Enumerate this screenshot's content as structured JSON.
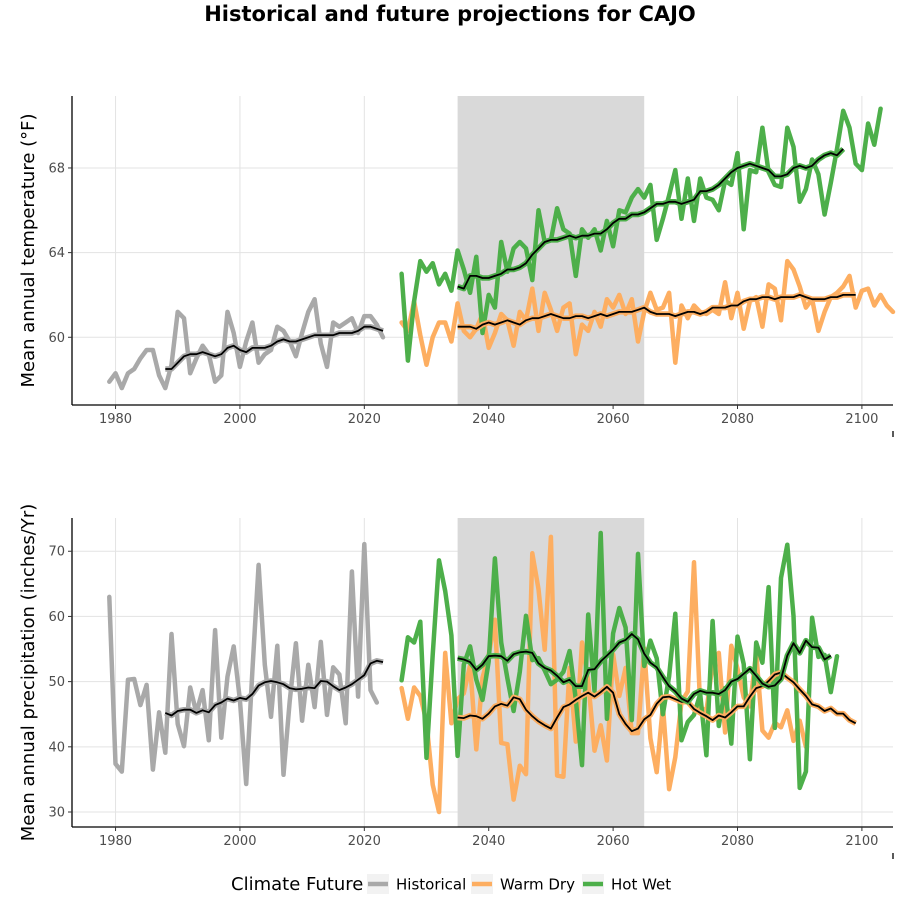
{
  "title": "Historical and future projections for CAJO",
  "colors": {
    "Historical": "#a9a9a9",
    "Warm Dry": "#fdae61",
    "Hot Wet": "#4daf4a",
    "smooth": "#000000",
    "shade": "#d9d9d9"
  },
  "legend": {
    "title": "Climate Future",
    "items": [
      "Historical",
      "Warm Dry",
      "Hot Wet"
    ],
    "position": "bottom"
  },
  "shaded_period": [
    2035,
    2065
  ],
  "chart_data": [
    {
      "type": "line",
      "ylabel": "Mean annual temperature (°F)",
      "xlabel": "",
      "xlim": [
        1973,
        2105
      ],
      "ylim": [
        56.8,
        71.4
      ],
      "xticks": [
        1980,
        2000,
        2020,
        2040,
        2060,
        2080,
        2100
      ],
      "yticks": [
        60,
        64,
        68
      ],
      "grid": true,
      "series": [
        {
          "name": "Historical",
          "x_start": 1979,
          "values": [
            57.9,
            58.3,
            57.6,
            58.3,
            58.5,
            59.0,
            59.4,
            59.4,
            58.2,
            57.6,
            58.7,
            61.2,
            60.9,
            58.3,
            59.0,
            59.6,
            59.2,
            57.9,
            58.2,
            61.2,
            60.2,
            58.6,
            59.8,
            60.7,
            58.8,
            59.2,
            59.4,
            60.5,
            60.3,
            59.8,
            59.1,
            60.2,
            61.2,
            61.8,
            59.7,
            58.6,
            60.7,
            60.5,
            60.7,
            60.9,
            60.2,
            61.0,
            61.0,
            60.6,
            60.0
          ]
        },
        {
          "name": "Historical (smoothed)",
          "x_start": 1988,
          "values": [
            58.5,
            58.5,
            58.8,
            59.1,
            59.2,
            59.2,
            59.3,
            59.2,
            59.1,
            59.2,
            59.5,
            59.6,
            59.4,
            59.3,
            59.5,
            59.5,
            59.5,
            59.6,
            59.8,
            59.9,
            59.8,
            59.8,
            59.9,
            60.0,
            60.1,
            60.1,
            60.1,
            60.1,
            60.2,
            60.2,
            60.2,
            60.3,
            60.5,
            60.5,
            60.4,
            60.3
          ]
        },
        {
          "name": "Warm Dry",
          "x_start": 2026,
          "values": [
            60.7,
            60.3,
            61.7,
            60.1,
            58.7,
            60.0,
            60.7,
            60.7,
            59.8,
            61.6,
            60.3,
            60.0,
            60.4,
            61.1,
            59.5,
            60.2,
            61.1,
            60.8,
            59.6,
            61.2,
            60.8,
            62.3,
            60.3,
            62.1,
            61.3,
            60.3,
            61.4,
            61.6,
            59.2,
            60.6,
            60.3,
            61.2,
            60.5,
            61.8,
            61.4,
            62.0,
            61.1,
            61.8,
            59.8,
            61.2,
            62.1,
            61.3,
            61.4,
            62.1,
            58.8,
            61.5,
            60.9,
            61.5,
            61.2,
            61.1,
            61.3,
            61.1,
            62.6,
            60.9,
            62.1,
            60.4,
            61.7,
            61.9,
            60.5,
            62.5,
            62.3,
            60.8,
            63.6,
            63.2,
            62.4,
            61.4,
            61.8,
            60.3,
            61.2,
            61.9,
            62.1,
            62.4,
            62.9,
            61.4,
            62.2,
            62.3,
            61.5,
            62.0,
            61.5,
            61.2
          ]
        },
        {
          "name": "Warm Dry (smoothed)",
          "x_start": 2035,
          "values": [
            60.5,
            60.5,
            60.5,
            60.4,
            60.6,
            60.7,
            60.6,
            60.7,
            60.8,
            60.7,
            60.6,
            60.8,
            60.9,
            60.9,
            61.0,
            61.1,
            61.0,
            60.9,
            60.9,
            61.0,
            61.0,
            60.9,
            61.0,
            61.1,
            61.0,
            61.1,
            61.2,
            61.2,
            61.2,
            61.3,
            61.4,
            61.2,
            61.1,
            61.1,
            61.1,
            61.0,
            61.1,
            61.2,
            61.2,
            61.1,
            61.2,
            61.4,
            61.4,
            61.4,
            61.5,
            61.5,
            61.7,
            61.8,
            61.8,
            61.9,
            61.9,
            61.8,
            61.9,
            61.9,
            61.9,
            62.0,
            61.9,
            61.8,
            61.8,
            61.8,
            61.9,
            61.9,
            62.0,
            62.0,
            62.0
          ]
        },
        {
          "name": "Hot Wet",
          "x_start": 2026,
          "values": [
            63.0,
            58.9,
            61.7,
            63.6,
            63.1,
            63.5,
            62.5,
            63.0,
            62.2,
            64.1,
            63.2,
            62.1,
            63.8,
            60.2,
            62.0,
            61.4,
            64.5,
            63.1,
            64.2,
            64.5,
            64.2,
            62.7,
            66.0,
            64.5,
            64.6,
            66.1,
            65.1,
            64.9,
            62.9,
            65.1,
            64.7,
            65.1,
            64.1,
            65.5,
            64.3,
            66.0,
            65.9,
            66.6,
            67.0,
            66.6,
            67.2,
            64.6,
            65.6,
            66.7,
            67.9,
            65.6,
            67.5,
            65.5,
            67.5,
            66.6,
            66.5,
            66.0,
            67.4,
            67.2,
            68.7,
            65.1,
            67.9,
            67.8,
            69.9,
            67.8,
            67.2,
            67.1,
            69.9,
            69.0,
            66.4,
            67.0,
            68.4,
            67.7,
            65.8,
            67.3,
            68.9,
            70.7,
            69.9,
            68.2,
            67.9,
            70.1,
            69.1,
            70.8
          ]
        },
        {
          "name": "Hot Wet (smoothed)",
          "x_start": 2035,
          "values": [
            62.4,
            62.3,
            62.9,
            62.9,
            62.8,
            62.8,
            62.9,
            63.0,
            63.2,
            63.2,
            63.3,
            63.5,
            63.9,
            64.2,
            64.5,
            64.6,
            64.6,
            64.7,
            64.8,
            64.7,
            64.8,
            64.8,
            64.9,
            64.9,
            65.1,
            65.4,
            65.6,
            65.6,
            65.8,
            65.8,
            65.9,
            66.1,
            66.3,
            66.3,
            66.4,
            66.4,
            66.3,
            66.4,
            66.5,
            66.9,
            66.9,
            67.0,
            67.2,
            67.5,
            67.8,
            68.0,
            68.1,
            68.2,
            68.1,
            68.0,
            67.9,
            67.6,
            67.6,
            67.7,
            68.0,
            68.1,
            68.0,
            68.1,
            68.4,
            68.6,
            68.7,
            68.6,
            68.9
          ]
        }
      ]
    },
    {
      "type": "line",
      "ylabel": "Mean annual precipitation (inches/Yr)",
      "xlabel": "",
      "xlim": [
        1973,
        2105
      ],
      "ylim": [
        27.7,
        75.1
      ],
      "xticks": [
        1980,
        2000,
        2020,
        2040,
        2060,
        2080,
        2100
      ],
      "yticks": [
        30,
        40,
        50,
        60,
        70
      ],
      "grid": true,
      "series": [
        {
          "name": "Historical",
          "x_start": 1979,
          "values": [
            63.0,
            37.4,
            36.2,
            50.3,
            50.4,
            46.4,
            49.5,
            36.5,
            45.3,
            39.1,
            57.3,
            43.5,
            40.1,
            49.1,
            45.2,
            48.7,
            41.0,
            57.9,
            41.4,
            50.8,
            55.4,
            47.2,
            34.3,
            51.7,
            67.9,
            52.6,
            44.6,
            55.5,
            35.7,
            47.0,
            55.9,
            44.0,
            52.6,
            46.1,
            56.1,
            44.9,
            52.2,
            51.1,
            43.6,
            66.9,
            47.7,
            71.1,
            48.7,
            46.8
          ]
        },
        {
          "name": "Historical (smoothed)",
          "x_start": 1988,
          "values": [
            45.2,
            44.8,
            45.5,
            45.7,
            45.7,
            45.2,
            45.6,
            45.3,
            46.4,
            46.8,
            47.4,
            47.1,
            47.5,
            47.3,
            48.1,
            49.4,
            49.9,
            50.1,
            49.9,
            49.6,
            49.0,
            48.8,
            48.9,
            49.1,
            49.0,
            50.1,
            50.0,
            49.3,
            48.7,
            49.1,
            49.6,
            50.3,
            51.0,
            52.8,
            53.2,
            53.0
          ]
        },
        {
          "name": "Warm Dry",
          "x_start": 2026,
          "values": [
            49.0,
            44.3,
            49.1,
            47.8,
            43.8,
            34.2,
            30.0,
            54.4,
            43.6,
            47.3,
            48.2,
            52.5,
            39.6,
            50.6,
            54.1,
            59.5,
            40.6,
            40.4,
            31.9,
            37.1,
            35.8,
            69.7,
            64.2,
            54.9,
            72.2,
            35.6,
            35.4,
            52.1,
            40.8,
            56.0,
            50.1,
            39.4,
            43.3,
            37.9,
            54.2,
            47.8,
            52.1,
            42.1,
            42.1,
            55.1,
            41.3,
            36.1,
            46.3,
            33.5,
            38.4,
            46.9,
            48.5,
            68.3,
            46.1,
            45.5,
            52.7,
            54.4,
            42.2,
            55.5,
            52.0,
            47.6,
            46.2,
            54.4,
            42.5,
            41.4,
            43.7,
            43.0,
            45.6,
            40.9,
            44.0,
            40.0
          ]
        },
        {
          "name": "Warm Dry (smoothed)",
          "x_start": 2035,
          "values": [
            44.5,
            44.4,
            44.8,
            44.7,
            44.3,
            45.1,
            46.2,
            46.6,
            46.3,
            47.6,
            47.3,
            45.7,
            44.7,
            43.9,
            43.3,
            42.8,
            44.5,
            46.1,
            46.5,
            47.2,
            47.8,
            48.3,
            47.7,
            48.4,
            49.2,
            48.3,
            45.0,
            43.5,
            42.4,
            42.8,
            44.2,
            44.9,
            46.6,
            47.6,
            47.7,
            47.3,
            46.9,
            46.9,
            45.8,
            45.2,
            44.7,
            44.1,
            44.8,
            44.5,
            45.3,
            46.2,
            46.2,
            47.7,
            49.0,
            49.3,
            50.1,
            51.1,
            51.4,
            50.6,
            49.9,
            48.8,
            47.8,
            46.5,
            46.2,
            45.5,
            45.9,
            45.1,
            45.1,
            44.1,
            43.6
          ]
        },
        {
          "name": "Hot Wet",
          "x_start": 2026,
          "values": [
            50.2,
            56.8,
            56.0,
            59.2,
            38.3,
            54.1,
            68.6,
            63.9,
            57.1,
            38.6,
            52.6,
            55.4,
            50.3,
            47.2,
            53.1,
            68.9,
            56.0,
            50.5,
            45.5,
            51.5,
            60.1,
            53.3,
            53.6,
            51.7,
            49.6,
            50.3,
            51.5,
            54.7,
            47.3,
            37.2,
            60.3,
            48.6,
            72.8,
            44.3,
            57.4,
            61.3,
            58.3,
            44.1,
            69.6,
            52.4,
            56.3,
            53.6,
            45.0,
            50.8,
            60.4,
            41.0,
            43.8,
            44.9,
            48.1,
            38.7,
            59.3,
            43.2,
            49.0,
            40.5,
            56.9,
            52.7,
            38.1,
            56.0,
            52.9,
            64.5,
            42.9,
            65.9,
            71.0,
            60.1,
            33.7,
            36.2,
            59.8,
            53.8,
            54.1,
            48.4,
            53.9
          ]
        },
        {
          "name": "Hot Wet (smoothed)",
          "x_start": 2035,
          "values": [
            53.6,
            53.4,
            53.0,
            51.8,
            52.6,
            53.9,
            54.0,
            53.9,
            53.2,
            54.2,
            54.5,
            54.6,
            54.4,
            52.8,
            52.1,
            51.7,
            50.9,
            49.9,
            50.3,
            49.3,
            49.3,
            51.8,
            51.9,
            53.1,
            54.0,
            54.9,
            56.0,
            56.4,
            57.3,
            56.5,
            54.3,
            52.9,
            52.2,
            50.7,
            49.3,
            48.5,
            47.4,
            46.9,
            48.1,
            48.6,
            48.3,
            48.3,
            48.1,
            48.7,
            50.0,
            50.4,
            51.2,
            52.0,
            50.9,
            49.7,
            49.2,
            49.4,
            50.4,
            54.0,
            55.9,
            54.4,
            56.3,
            55.3,
            55.2,
            53.4,
            54.0
          ]
        }
      ]
    }
  ]
}
